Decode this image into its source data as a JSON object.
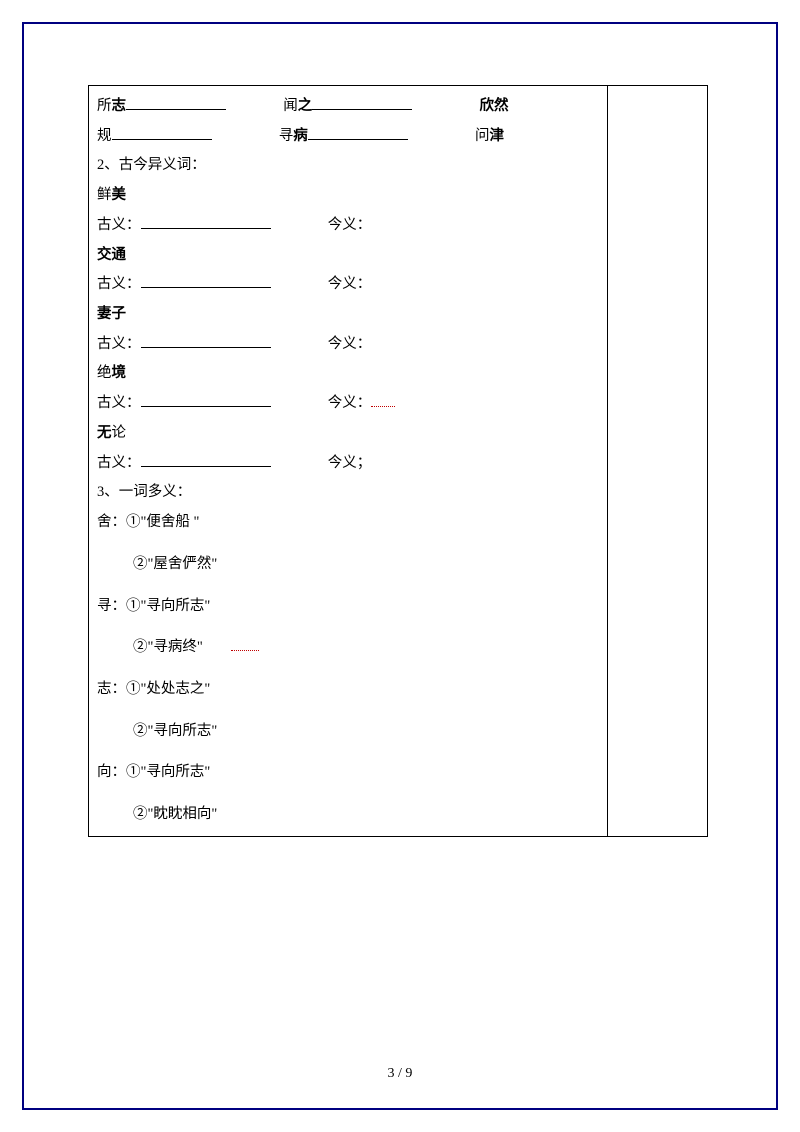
{
  "row1": {
    "c1a": "所",
    "c1b": "志",
    "c2a": "闻",
    "c2b": "之",
    "c3": "欣然"
  },
  "row2": {
    "c1": "规",
    "c2a": "寻",
    "c2b": "病",
    "c3a": "问",
    "c3b": "津"
  },
  "section2": {
    "heading": "2、古今异义词："
  },
  "words": {
    "w1": {
      "term_a": "鲜",
      "term_b": "美",
      "gu": "古义：",
      "jin": "今义："
    },
    "w2": {
      "term": "交通",
      "gu": "古义：",
      "jin": "今义："
    },
    "w3": {
      "term": "妻子",
      "gu": "古义：",
      "jin": "今义："
    },
    "w4": {
      "term_a": "绝",
      "term_b": "境",
      "gu": "古义：",
      "jin": "今义："
    },
    "w5": {
      "term_a": "无",
      "term_b": "论",
      "gu": "古义：",
      "jin": "今义；"
    }
  },
  "section3": {
    "heading": "3、一词多义："
  },
  "poly": {
    "she": {
      "head": "舍：①\"便舍船  \"",
      "l2": "②\"屋舍俨然\""
    },
    "xun": {
      "head": "寻：①\"寻向所志\"",
      "l2": "②\"寻病终\""
    },
    "zhi": {
      "head": "志：①\"处处志之\"",
      "l2": "②\"寻向所志\""
    },
    "xiang": {
      "head": "向：①\"寻向所志\"",
      "l2": "②\"眈眈相向\""
    }
  },
  "footer": "3 / 9"
}
